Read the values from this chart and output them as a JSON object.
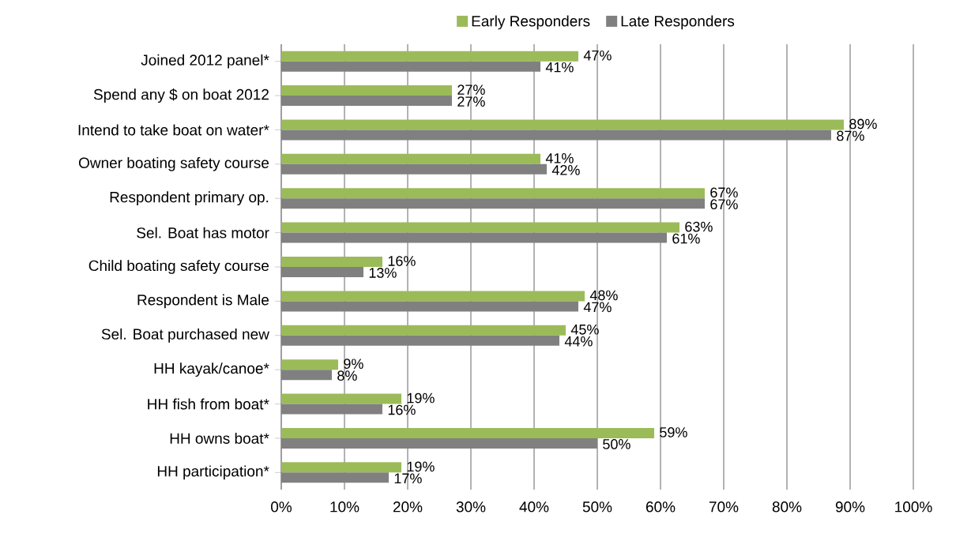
{
  "chart_data": {
    "type": "bar",
    "orientation": "horizontal",
    "categories": [
      "Joined 2012 panel*",
      "Spend any $ on boat 2012",
      "Intend to take boat on water*",
      "Owner boating safety course",
      "Respondent primary op.",
      "Sel. Boat has motor",
      "Child boating safety course",
      "Respondent is Male",
      "Sel. Boat purchased new",
      "HH kayak/canoe*",
      "HH fish from boat*",
      "HH owns boat*",
      "HH participation*"
    ],
    "series": [
      {
        "name": "Early Responders",
        "color": "#9bbb59",
        "values": [
          47,
          27,
          89,
          41,
          67,
          63,
          16,
          48,
          45,
          9,
          19,
          59,
          19
        ],
        "value_labels": [
          "47%",
          "27%",
          "89%",
          "41%",
          "67%",
          "63%",
          "16%",
          "48%",
          "45%",
          "9%",
          "19%",
          "59%",
          "19%"
        ]
      },
      {
        "name": "Late Responders",
        "color": "#808080",
        "values": [
          41,
          27,
          87,
          42,
          67,
          61,
          13,
          47,
          44,
          8,
          16,
          50,
          17
        ],
        "value_labels": [
          "41%",
          "27%",
          "87%",
          "42%",
          "67%",
          "61%",
          "13%",
          "47%",
          "44%",
          "8%",
          "16%",
          "50%",
          "17%"
        ]
      }
    ],
    "xlim": [
      0,
      100
    ],
    "xticks": [
      {
        "value": 0,
        "label": "0%"
      },
      {
        "value": 10,
        "label": "10%"
      },
      {
        "value": 20,
        "label": "20%"
      },
      {
        "value": 30,
        "label": "30%"
      },
      {
        "value": 40,
        "label": "40%"
      },
      {
        "value": 50,
        "label": "50%"
      },
      {
        "value": 60,
        "label": "60%"
      },
      {
        "value": 70,
        "label": "70%"
      },
      {
        "value": 80,
        "label": "80%"
      },
      {
        "value": 90,
        "label": "90%"
      },
      {
        "value": 100,
        "label": "100%"
      }
    ],
    "grid": "x",
    "legend": "top"
  }
}
